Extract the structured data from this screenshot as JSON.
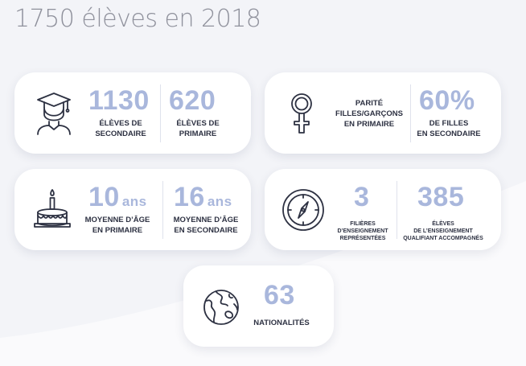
{
  "title": "1750 élèves en 2018",
  "colors": {
    "accent": "#a9b7dc",
    "text": "#2d3142",
    "icon_stroke": "#2d3142",
    "title": "#8f919c"
  },
  "cards": [
    {
      "icon": "graduate-icon",
      "stats": [
        {
          "value": "1130",
          "label": [
            "ÉLÈVES DE",
            "SECONDAIRE"
          ]
        },
        {
          "value": "620",
          "label": [
            "ÉLÈVES DE",
            "PRIMAIRE"
          ]
        }
      ]
    },
    {
      "icon": "female-symbol-icon",
      "heading": [
        "PARITÉ",
        "FILLES/GARÇONS",
        "EN PRIMAIRE"
      ],
      "stats": [
        {
          "value": "60%",
          "label": [
            "DE FILLES",
            "EN SECONDAIRE"
          ]
        }
      ]
    },
    {
      "icon": "birthday-cake-icon",
      "stats": [
        {
          "value": "10",
          "unit": "ans",
          "label": [
            "MOYENNE D’ÂGE",
            "EN PRIMAIRE"
          ]
        },
        {
          "value": "16",
          "unit": "ans",
          "label": [
            "MOYENNE D’ÂGE",
            "EN SECONDAIRE"
          ]
        }
      ]
    },
    {
      "icon": "compass-icon",
      "stats": [
        {
          "value": "3",
          "label": [
            "FILIÈRES",
            "D’ENSEIGNEMENT",
            "REPRÉSENTÉES"
          ]
        },
        {
          "value": "385",
          "label": [
            "ÉLÈVES",
            "DE L’ENSEIGNEMENT",
            "QUALIFIANT ACCOMPAGNÉS"
          ]
        }
      ]
    },
    {
      "icon": "globe-icon",
      "stats": [
        {
          "value": "63",
          "label": [
            "NATIONALITÉS"
          ]
        }
      ]
    }
  ]
}
